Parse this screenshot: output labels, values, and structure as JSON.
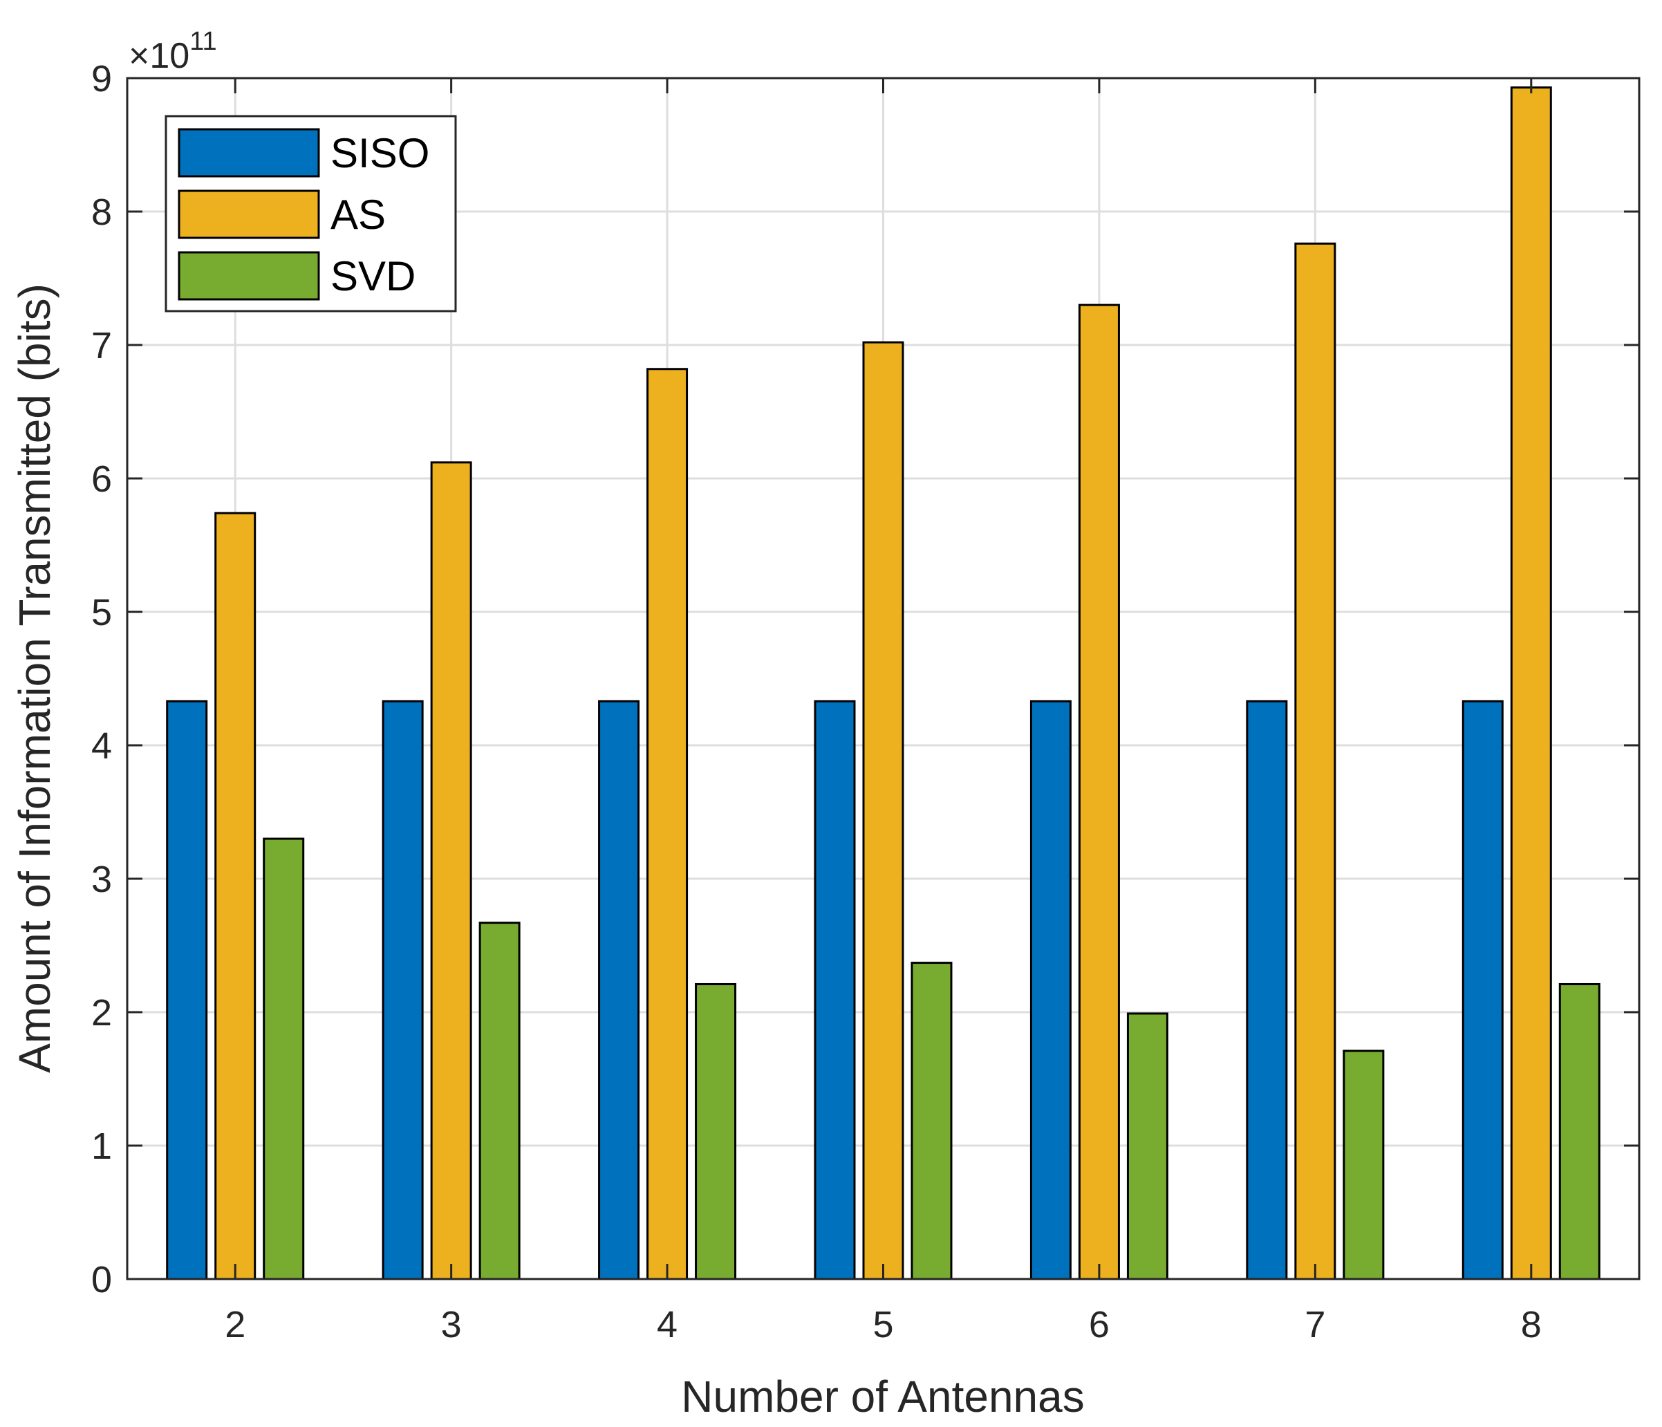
{
  "chart_data": {
    "type": "bar",
    "title": "",
    "xlabel": "Number of Antennas",
    "ylabel": "Amount of Information Transmitted (bits)",
    "categories": [
      "2",
      "3",
      "4",
      "5",
      "6",
      "7",
      "8"
    ],
    "ylim": [
      0,
      9
    ],
    "yticks": [
      "0",
      "1",
      "2",
      "3",
      "4",
      "5",
      "6",
      "7",
      "8",
      "9"
    ],
    "y_exponent": {
      "base": "×10",
      "power": "11"
    },
    "grid": true,
    "legend_position": "top-left",
    "series": [
      {
        "name": "SISO",
        "color": "#0072BD",
        "values": [
          4.33,
          4.33,
          4.33,
          4.33,
          4.33,
          4.33,
          4.33
        ]
      },
      {
        "name": "AS",
        "color": "#EDB120",
        "values": [
          5.74,
          6.12,
          6.82,
          7.02,
          7.3,
          7.76,
          8.93
        ]
      },
      {
        "name": "SVD",
        "color": "#77AC30",
        "values": [
          3.3,
          2.67,
          2.21,
          2.37,
          1.99,
          1.71,
          2.21
        ]
      }
    ]
  }
}
